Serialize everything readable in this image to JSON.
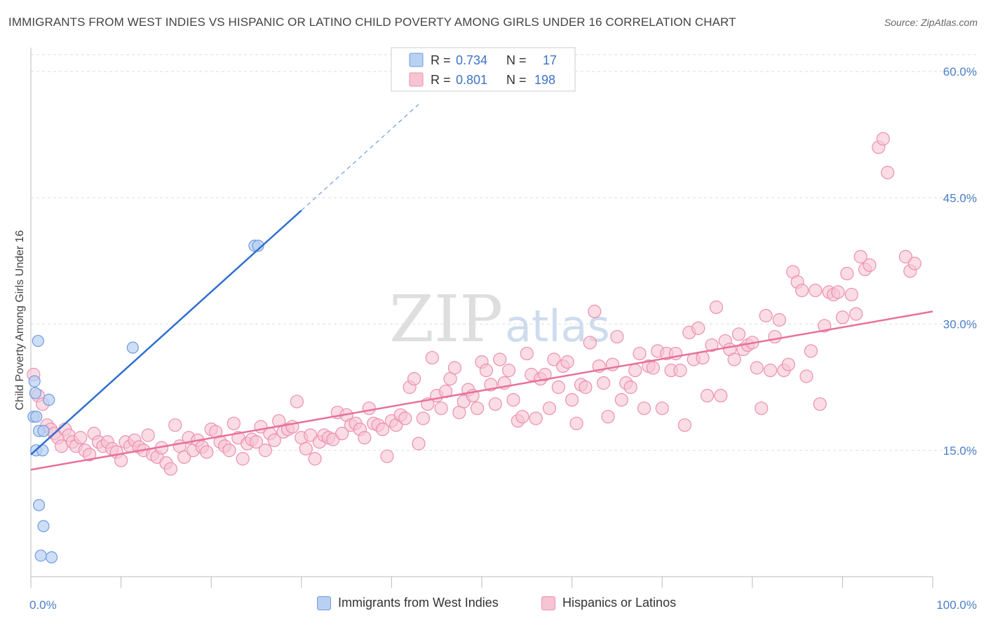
{
  "title": "IMMIGRANTS FROM WEST INDIES VS HISPANIC OR LATINO CHILD POVERTY AMONG GIRLS UNDER 16 CORRELATION CHART",
  "source": "Source: ZipAtlas.com",
  "watermark": {
    "zip": "ZIP",
    "atlas": "atlas"
  },
  "colors": {
    "blue_fill": "#b8d0f2",
    "blue_stroke": "#6f9be0",
    "blue_line": "#2f6fcf",
    "pink_fill": "#f7c4d4",
    "pink_stroke": "#ec8fae",
    "pink_line": "#e8709a",
    "tick_text": "#4a7fc8",
    "grid": "#dddddd"
  },
  "legend": {
    "rows": [
      {
        "r_label": "R = ",
        "r_value": "0.734",
        "n_label": "N = ",
        "n_value": "17",
        "color": "blue"
      },
      {
        "r_label": "R = ",
        "r_value": "0.801",
        "n_label": "N = ",
        "n_value": "198",
        "color": "pink"
      }
    ]
  },
  "chart_data": {
    "type": "scatter",
    "title": "IMMIGRANTS FROM WEST INDIES VS HISPANIC OR LATINO CHILD POVERTY AMONG GIRLS UNDER 16 CORRELATION CHART",
    "xlabel": "",
    "ylabel": "Child Poverty Among Girls Under 16",
    "xlim": [
      0,
      100
    ],
    "ylim": [
      0,
      62
    ],
    "x_tick_labels": [
      "0.0%",
      "100.0%"
    ],
    "y_ticks": [
      15,
      30,
      45,
      60
    ],
    "y_tick_labels": [
      "15.0%",
      "30.0%",
      "45.0%",
      "60.0%"
    ],
    "grid": true,
    "legend_position": "top-center",
    "series": [
      {
        "name": "Immigrants from West Indies",
        "color": "blue",
        "trend": {
          "x0": 0,
          "y0": 14.5,
          "x1": 30,
          "y1": 43.5,
          "dash_to_x": 43,
          "dash_to_y": 56.1
        },
        "points": [
          [
            0.6,
            15.0
          ],
          [
            0.8,
            28.0
          ],
          [
            0.4,
            23.2
          ],
          [
            0.5,
            21.8
          ],
          [
            0.3,
            19.0
          ],
          [
            0.6,
            19.0
          ],
          [
            0.9,
            17.3
          ],
          [
            1.4,
            17.3
          ],
          [
            1.3,
            15.0
          ],
          [
            2.0,
            21.0
          ],
          [
            0.9,
            8.5
          ],
          [
            1.4,
            6.0
          ],
          [
            1.1,
            2.5
          ],
          [
            2.3,
            2.3
          ],
          [
            11.3,
            27.2
          ],
          [
            24.8,
            39.3
          ],
          [
            25.2,
            39.3
          ]
        ]
      },
      {
        "name": "Hispanics or Latinos",
        "color": "pink",
        "trend": {
          "x0": 0,
          "y0": 12.7,
          "x1": 100,
          "y1": 31.5
        },
        "points": [
          [
            0.3,
            24.0
          ],
          [
            0.8,
            21.5
          ],
          [
            1.3,
            20.5
          ],
          [
            1.8,
            18.0
          ],
          [
            2.2,
            17.5
          ],
          [
            2.6,
            17.0
          ],
          [
            3.0,
            16.5
          ],
          [
            3.4,
            15.5
          ],
          [
            3.8,
            17.5
          ],
          [
            4.2,
            16.8
          ],
          [
            4.6,
            16.0
          ],
          [
            5.0,
            15.5
          ],
          [
            5.5,
            16.5
          ],
          [
            6.0,
            15.0
          ],
          [
            6.5,
            14.5
          ],
          [
            7.0,
            17.0
          ],
          [
            7.5,
            16.0
          ],
          [
            8.0,
            15.5
          ],
          [
            8.5,
            16.0
          ],
          [
            9.0,
            15.2
          ],
          [
            9.5,
            14.8
          ],
          [
            10.0,
            13.8
          ],
          [
            10.5,
            16.0
          ],
          [
            11.0,
            15.5
          ],
          [
            11.5,
            16.2
          ],
          [
            12.0,
            15.4
          ],
          [
            12.5,
            15.0
          ],
          [
            13.0,
            16.8
          ],
          [
            13.5,
            14.5
          ],
          [
            14.0,
            14.2
          ],
          [
            14.5,
            15.3
          ],
          [
            15.0,
            13.5
          ],
          [
            15.5,
            12.8
          ],
          [
            16.0,
            18.0
          ],
          [
            16.5,
            15.5
          ],
          [
            17.0,
            14.2
          ],
          [
            17.5,
            16.5
          ],
          [
            18.0,
            15.0
          ],
          [
            18.5,
            16.2
          ],
          [
            19.0,
            15.4
          ],
          [
            19.5,
            14.8
          ],
          [
            20.0,
            17.5
          ],
          [
            20.5,
            17.2
          ],
          [
            21.0,
            16.0
          ],
          [
            21.5,
            15.5
          ],
          [
            22.0,
            15.0
          ],
          [
            22.5,
            18.2
          ],
          [
            23.0,
            16.5
          ],
          [
            23.5,
            14.0
          ],
          [
            24.0,
            15.8
          ],
          [
            24.5,
            16.3
          ],
          [
            25.0,
            16.0
          ],
          [
            25.5,
            17.8
          ],
          [
            26.0,
            15.0
          ],
          [
            26.5,
            17.0
          ],
          [
            27.0,
            16.2
          ],
          [
            27.5,
            18.5
          ],
          [
            28.0,
            17.2
          ],
          [
            28.5,
            17.5
          ],
          [
            29.0,
            17.8
          ],
          [
            29.5,
            20.8
          ],
          [
            30.0,
            16.5
          ],
          [
            30.5,
            15.2
          ],
          [
            31.0,
            16.8
          ],
          [
            31.5,
            14.0
          ],
          [
            32.0,
            16.0
          ],
          [
            32.5,
            16.8
          ],
          [
            33.0,
            16.5
          ],
          [
            33.5,
            16.3
          ],
          [
            34.0,
            19.5
          ],
          [
            34.5,
            17.0
          ],
          [
            35.0,
            19.2
          ],
          [
            35.5,
            18.0
          ],
          [
            36.0,
            18.2
          ],
          [
            36.5,
            17.5
          ],
          [
            37.0,
            16.5
          ],
          [
            37.5,
            20.0
          ],
          [
            38.0,
            18.2
          ],
          [
            38.5,
            18.0
          ],
          [
            39.0,
            17.5
          ],
          [
            39.5,
            14.3
          ],
          [
            40.0,
            18.5
          ],
          [
            40.5,
            18.0
          ],
          [
            41.0,
            19.2
          ],
          [
            41.5,
            18.8
          ],
          [
            42.0,
            22.5
          ],
          [
            42.5,
            23.5
          ],
          [
            43.0,
            15.8
          ],
          [
            43.5,
            18.8
          ],
          [
            44.0,
            20.5
          ],
          [
            44.5,
            26.0
          ],
          [
            45.0,
            21.5
          ],
          [
            45.5,
            20.0
          ],
          [
            46.0,
            22.0
          ],
          [
            46.5,
            23.5
          ],
          [
            47.0,
            24.8
          ],
          [
            47.5,
            19.5
          ],
          [
            48.0,
            20.8
          ],
          [
            48.5,
            22.2
          ],
          [
            49.0,
            21.5
          ],
          [
            49.5,
            20.0
          ],
          [
            50.0,
            25.5
          ],
          [
            50.5,
            24.5
          ],
          [
            51.0,
            22.8
          ],
          [
            51.5,
            20.5
          ],
          [
            52.0,
            25.8
          ],
          [
            52.5,
            23.0
          ],
          [
            53.0,
            24.5
          ],
          [
            53.5,
            21.0
          ],
          [
            54.0,
            18.5
          ],
          [
            54.5,
            19.0
          ],
          [
            55.0,
            26.5
          ],
          [
            55.5,
            24.0
          ],
          [
            56.0,
            18.8
          ],
          [
            56.5,
            23.5
          ],
          [
            57.0,
            24.0
          ],
          [
            57.5,
            20.0
          ],
          [
            58.0,
            25.8
          ],
          [
            58.5,
            22.5
          ],
          [
            59.0,
            25.0
          ],
          [
            59.5,
            25.5
          ],
          [
            60.0,
            21.0
          ],
          [
            60.5,
            18.2
          ],
          [
            61.0,
            22.8
          ],
          [
            61.5,
            22.5
          ],
          [
            62.0,
            27.8
          ],
          [
            62.5,
            31.5
          ],
          [
            63.0,
            25.0
          ],
          [
            63.5,
            23.0
          ],
          [
            64.0,
            19.0
          ],
          [
            64.5,
            25.2
          ],
          [
            65.0,
            28.5
          ],
          [
            65.5,
            21.0
          ],
          [
            66.0,
            23.0
          ],
          [
            66.5,
            22.5
          ],
          [
            67.0,
            24.5
          ],
          [
            67.5,
            26.5
          ],
          [
            68.0,
            20.0
          ],
          [
            68.5,
            25.0
          ],
          [
            69.0,
            24.8
          ],
          [
            69.5,
            26.8
          ],
          [
            70.0,
            20.0
          ],
          [
            70.5,
            26.5
          ],
          [
            71.0,
            24.5
          ],
          [
            71.5,
            26.5
          ],
          [
            72.0,
            24.5
          ],
          [
            72.5,
            18.0
          ],
          [
            73.0,
            29.0
          ],
          [
            73.5,
            25.8
          ],
          [
            74.0,
            29.5
          ],
          [
            74.5,
            26.0
          ],
          [
            75.0,
            21.5
          ],
          [
            75.5,
            27.5
          ],
          [
            76.0,
            32.0
          ],
          [
            76.5,
            21.5
          ],
          [
            77.0,
            28.0
          ],
          [
            77.5,
            27.0
          ],
          [
            78.0,
            25.8
          ],
          [
            78.5,
            28.8
          ],
          [
            79.0,
            27.0
          ],
          [
            79.5,
            27.5
          ],
          [
            80.0,
            27.8
          ],
          [
            80.5,
            24.8
          ],
          [
            81.0,
            20.0
          ],
          [
            81.5,
            31.0
          ],
          [
            82.0,
            24.5
          ],
          [
            82.5,
            28.5
          ],
          [
            83.0,
            30.5
          ],
          [
            83.5,
            24.5
          ],
          [
            84.0,
            25.2
          ],
          [
            84.5,
            36.2
          ],
          [
            85.0,
            35.0
          ],
          [
            85.5,
            34.0
          ],
          [
            86.0,
            23.8
          ],
          [
            86.5,
            26.8
          ],
          [
            87.0,
            34.0
          ],
          [
            87.5,
            20.5
          ],
          [
            88.0,
            29.8
          ],
          [
            88.5,
            33.8
          ],
          [
            89.0,
            33.5
          ],
          [
            89.5,
            33.8
          ],
          [
            90.0,
            30.8
          ],
          [
            90.5,
            36.0
          ],
          [
            91.0,
            33.5
          ],
          [
            91.5,
            31.2
          ],
          [
            92.0,
            38.0
          ],
          [
            92.5,
            36.5
          ],
          [
            93.0,
            37.0
          ],
          [
            94.0,
            51.0
          ],
          [
            94.5,
            52.0
          ],
          [
            95.0,
            48.0
          ],
          [
            97.0,
            38.0
          ],
          [
            97.5,
            36.3
          ],
          [
            98.0,
            37.2
          ]
        ]
      }
    ]
  },
  "bottom_legend": [
    {
      "label": "Immigrants from West Indies",
      "color": "blue"
    },
    {
      "label": "Hispanics or Latinos",
      "color": "pink"
    }
  ]
}
